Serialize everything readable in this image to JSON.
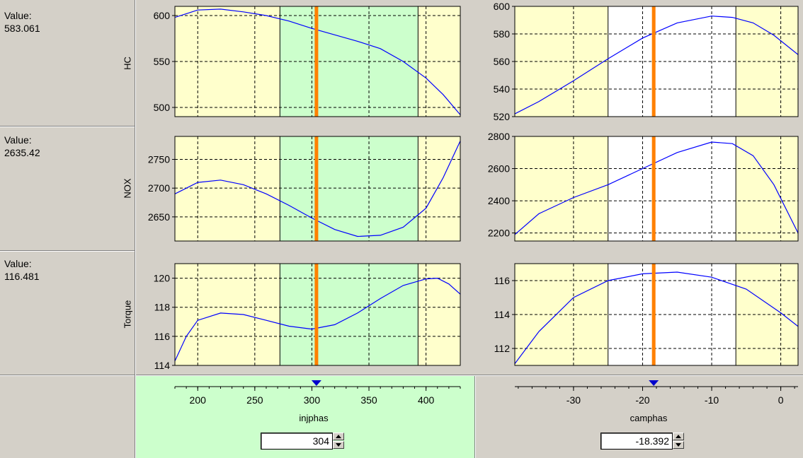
{
  "value_caption": "Value:",
  "rows": [
    {
      "response": "HC",
      "value": "583.061"
    },
    {
      "response": "NOX",
      "value": "2635.42"
    },
    {
      "response": "Torque",
      "value": "116.481"
    }
  ],
  "inputs": [
    {
      "name": "injphas",
      "value": "304",
      "xlim": [
        180,
        430
      ],
      "ticks": [
        200,
        250,
        300,
        350,
        400
      ],
      "current": 304,
      "green_region": [
        272,
        393
      ],
      "bg_color": "#ccffcc"
    },
    {
      "name": "camphas",
      "value": "-18.392",
      "xlim": [
        -38.5,
        2.5
      ],
      "ticks": [
        -30,
        -20,
        -10,
        0
      ],
      "current": -18.392,
      "white_region": [
        -25,
        -6.5
      ],
      "bg_color": "#d4d0c8"
    }
  ],
  "colors": {
    "plot_bg": "#ffffcc",
    "green_region": "#ccffcc",
    "white_region": "#ffffff",
    "curve": "#0000ff",
    "cursor_line": "#ff8000",
    "marker": "#0000cc"
  },
  "chart_data": [
    {
      "type": "line",
      "row": "HC",
      "input": "injphas",
      "xlim": [
        180,
        430
      ],
      "ylim": [
        490,
        610
      ],
      "yticks": [
        500,
        550,
        600
      ],
      "x": [
        180,
        200,
        220,
        240,
        260,
        280,
        300,
        320,
        340,
        360,
        380,
        400,
        415,
        430
      ],
      "y": [
        598,
        606,
        607,
        604,
        600,
        594,
        586,
        579,
        572,
        564,
        550,
        532,
        514,
        492
      ]
    },
    {
      "type": "line",
      "row": "HC",
      "input": "camphas",
      "xlim": [
        -38.5,
        2.5
      ],
      "ylim": [
        520,
        600
      ],
      "yticks": [
        520,
        540,
        560,
        580,
        600
      ],
      "x": [
        -38.5,
        -35,
        -30,
        -25,
        -20,
        -15,
        -10,
        -7,
        -4,
        -1,
        2.5
      ],
      "y": [
        522,
        531,
        546,
        562,
        577,
        588,
        593,
        592,
        588,
        579,
        565
      ]
    },
    {
      "type": "line",
      "row": "NOX",
      "input": "injphas",
      "xlim": [
        180,
        430
      ],
      "ylim": [
        2608,
        2790
      ],
      "yticks": [
        2650,
        2700,
        2750
      ],
      "x": [
        180,
        200,
        220,
        240,
        260,
        280,
        300,
        320,
        340,
        360,
        380,
        400,
        415,
        430
      ],
      "y": [
        2690,
        2710,
        2714,
        2706,
        2690,
        2670,
        2648,
        2628,
        2616,
        2618,
        2632,
        2665,
        2718,
        2782
      ]
    },
    {
      "type": "line",
      "row": "NOX",
      "input": "camphas",
      "xlim": [
        -38.5,
        2.5
      ],
      "ylim": [
        2150,
        2800
      ],
      "yticks": [
        2200,
        2400,
        2600,
        2800
      ],
      "x": [
        -38.5,
        -35,
        -30,
        -25,
        -20,
        -15,
        -10,
        -7,
        -4,
        -1,
        2.5
      ],
      "y": [
        2190,
        2320,
        2420,
        2500,
        2600,
        2700,
        2765,
        2755,
        2680,
        2500,
        2200
      ]
    },
    {
      "type": "line",
      "row": "Torque",
      "input": "injphas",
      "xlim": [
        180,
        430
      ],
      "ylim": [
        114,
        121
      ],
      "yticks": [
        114,
        116,
        118,
        120
      ],
      "x": [
        180,
        190,
        200,
        220,
        240,
        260,
        280,
        300,
        320,
        340,
        360,
        380,
        400,
        410,
        420,
        430
      ],
      "y": [
        114.3,
        116.0,
        117.1,
        117.6,
        117.5,
        117.1,
        116.7,
        116.5,
        116.8,
        117.6,
        118.6,
        119.5,
        119.95,
        120.0,
        119.6,
        118.9
      ]
    },
    {
      "type": "line",
      "row": "Torque",
      "input": "camphas",
      "xlim": [
        -38.5,
        2.5
      ],
      "ylim": [
        111,
        117
      ],
      "yticks": [
        112,
        114,
        116
      ],
      "x": [
        -38.5,
        -35,
        -30,
        -25,
        -20,
        -15,
        -10,
        -5,
        0,
        2.5
      ],
      "y": [
        111.1,
        113.0,
        115.0,
        116.0,
        116.4,
        116.5,
        116.2,
        115.5,
        114.1,
        113.3
      ]
    }
  ]
}
